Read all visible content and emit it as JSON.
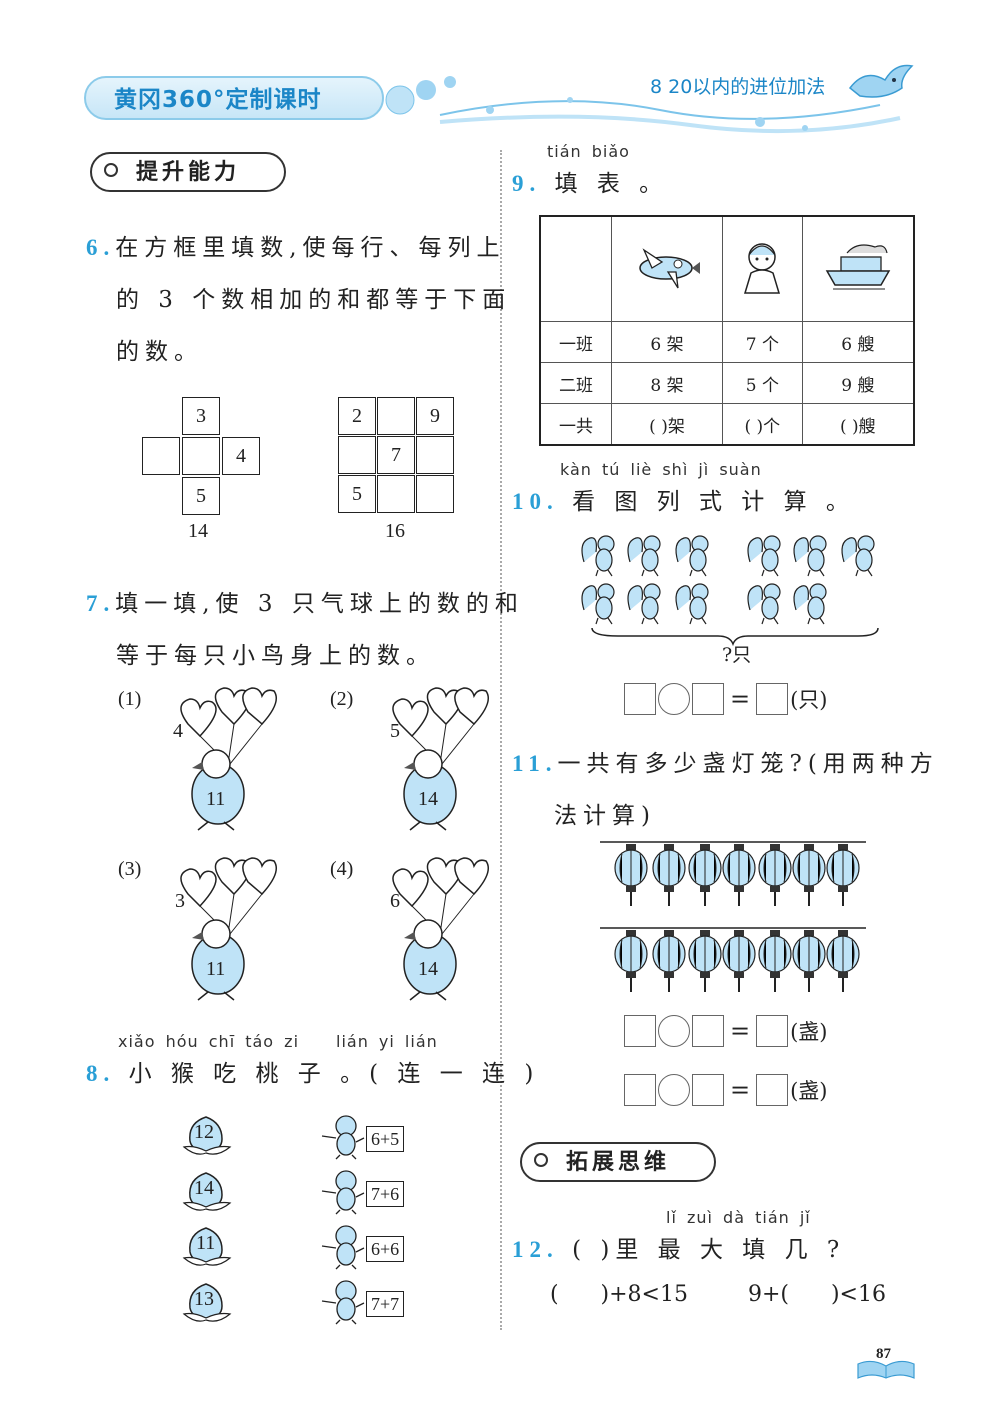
{
  "header": {
    "brand": "黄冈360°定制课时",
    "chapter": "8   20以内的进位加法"
  },
  "sections": {
    "improve": "提升能力",
    "expand": "拓展思维"
  },
  "q6": {
    "num": "6.",
    "text": [
      "在方框里填数,使每行、每列上",
      "的 3 个数相加的和都等于下面",
      "的数。"
    ],
    "grid1": {
      "top": "3",
      "right": "4",
      "bottom": "5",
      "sum": "14"
    },
    "grid2": {
      "tl": "2",
      "tr": "9",
      "center": "7",
      "bl": "5",
      "sum": "16"
    }
  },
  "q7": {
    "num": "7.",
    "text": [
      "填一填,使 3 只气球上的数的和",
      "等于每只小鸟身上的数。"
    ],
    "items": [
      {
        "label": "(1)",
        "balloon": "4",
        "bird": "11"
      },
      {
        "label": "(2)",
        "balloon": "5",
        "bird": "14"
      },
      {
        "label": "(3)",
        "balloon": "3",
        "bird": "11"
      },
      {
        "label": "(4)",
        "balloon": "6",
        "bird": "14"
      }
    ]
  },
  "q8": {
    "num": "8.",
    "pinyin_a": "xiǎo hóu chī táo  zi",
    "pinyin_b": "lián  yi  lián",
    "text": "小 猴 吃 桃 子 。( 连 一 连 )",
    "peaches": [
      "12",
      "14",
      "11",
      "13"
    ],
    "monkeys": [
      "6+5",
      "7+6",
      "6+6",
      "7+7"
    ]
  },
  "q9": {
    "num": "9.",
    "pinyin": "tián biǎo",
    "text": "填 表 。",
    "rows": [
      {
        "label": "一班",
        "cells": [
          "6 架",
          "7 个",
          "6 艘"
        ]
      },
      {
        "label": "二班",
        "cells": [
          "8 架",
          "5 个",
          "9 艘"
        ]
      },
      {
        "label": "一共",
        "cells": [
          "(    )架",
          "(    )个",
          "(    )艘"
        ]
      }
    ]
  },
  "q10": {
    "num": "10.",
    "pinyin": "kàn  tú   liè  shì   jì   suàn",
    "text": "看 图 列 式 计 算 。",
    "brace_label": "?只",
    "unit": "(只)"
  },
  "q11": {
    "num": "11.",
    "text": [
      "一共有多少盏灯笼?(用两种方",
      "法计算)"
    ],
    "unit": "(盏)"
  },
  "q12": {
    "num": "12.",
    "pinyin": "lǐ  zuì  dà  tián  jǐ",
    "text": "(      )里 最 大 填 几 ?",
    "expr1": "(      )+8<15",
    "expr2": "9+(      )<16"
  },
  "page_number": "87"
}
